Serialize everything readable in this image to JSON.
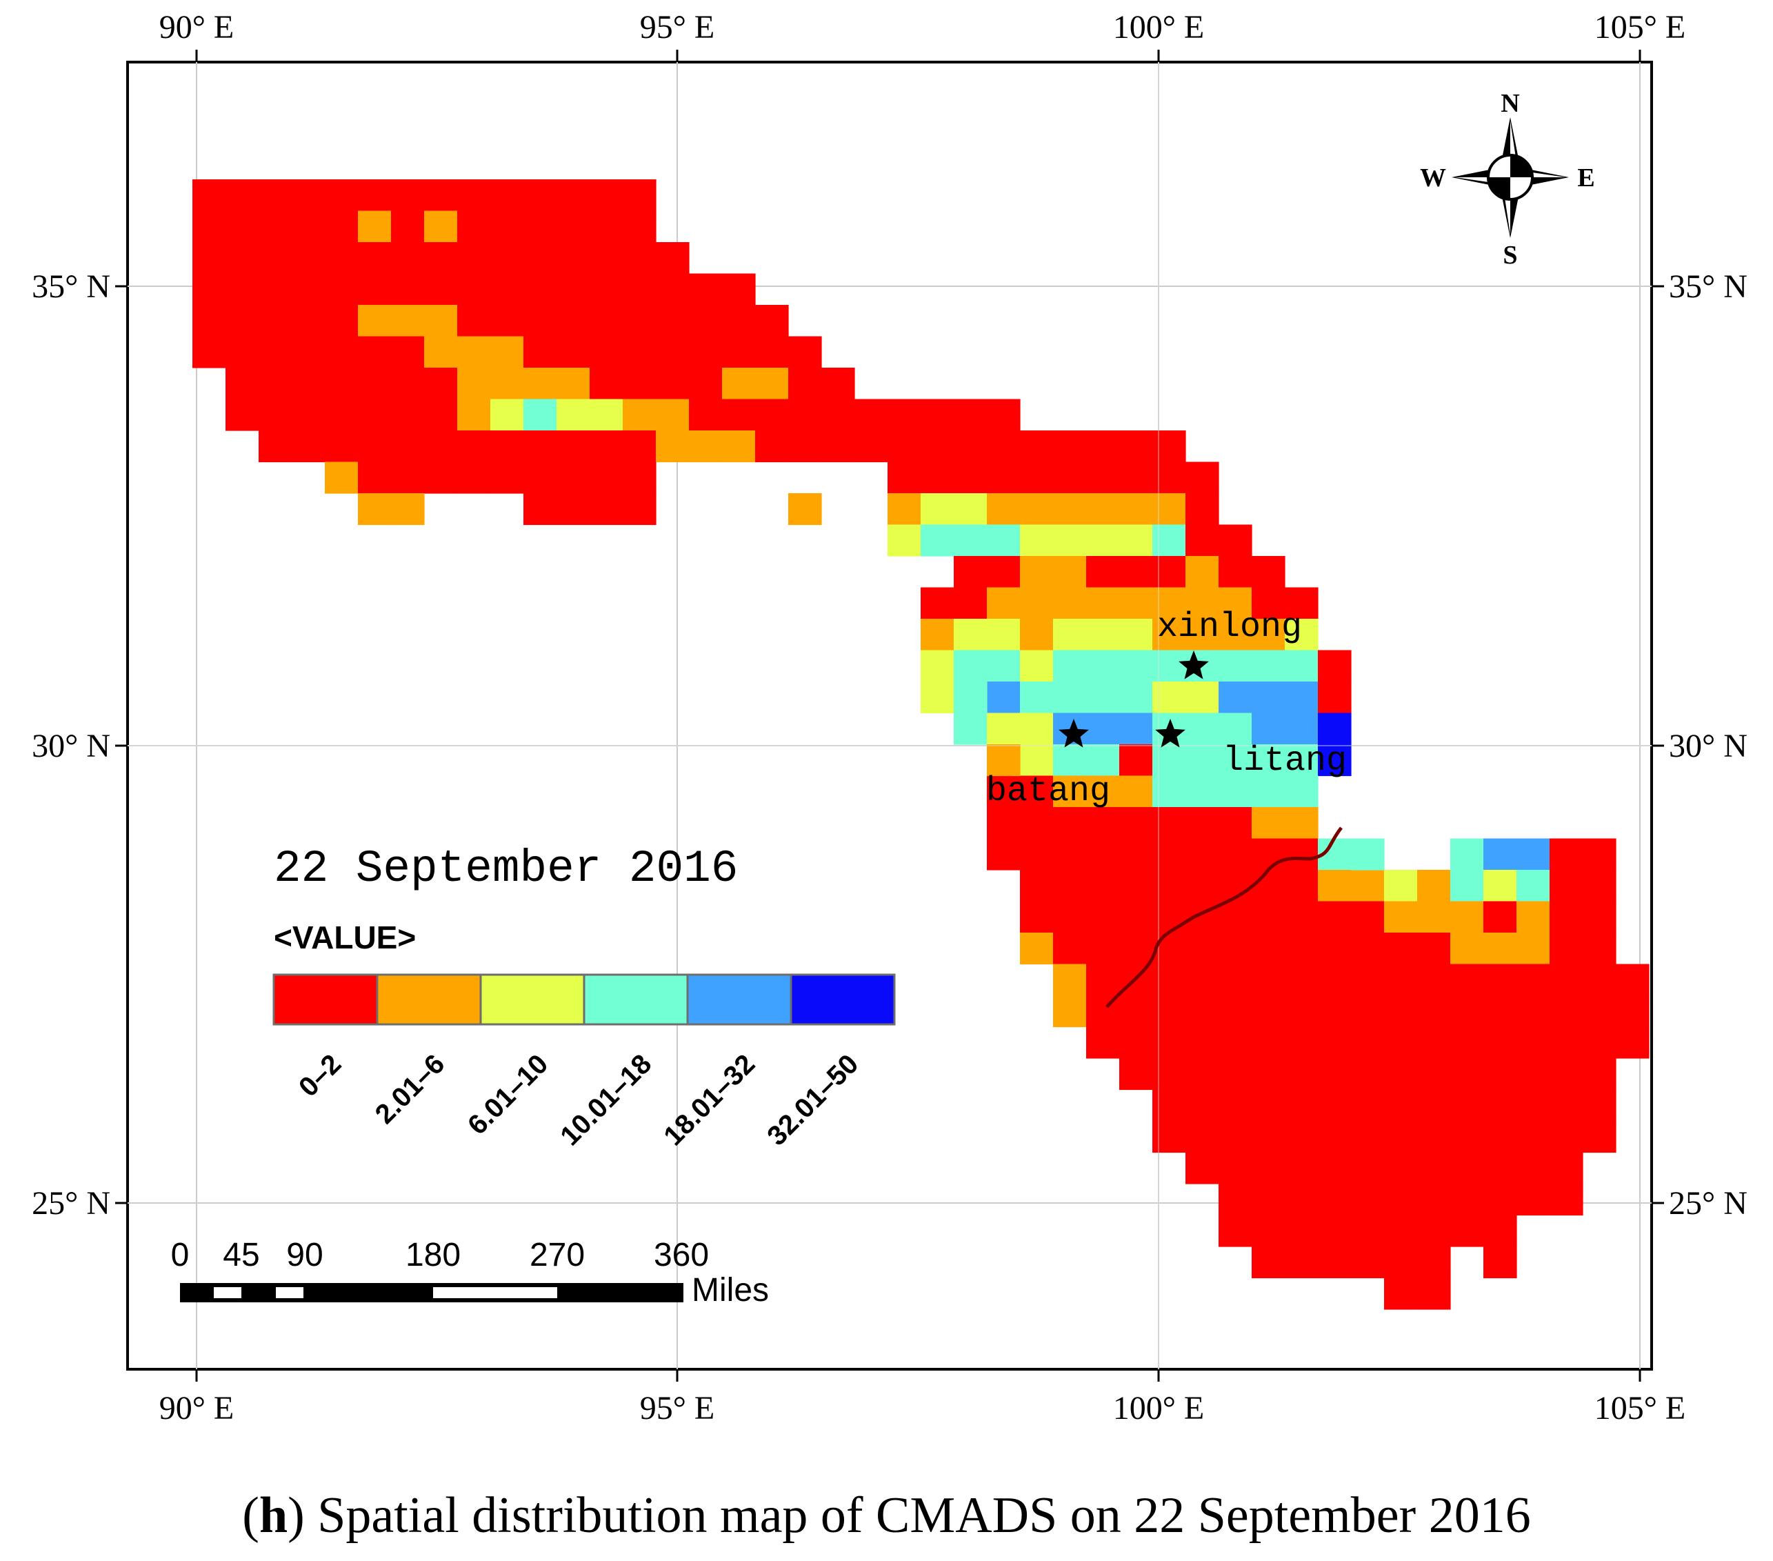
{
  "figure": {
    "panel_letter": "h",
    "caption_text": "Spatial distribution map of CMADS on 22 September 2016",
    "date_title": "22 September 2016"
  },
  "axes": {
    "top_labels": [
      "90° E",
      "95° E",
      "100° E",
      "105° E"
    ],
    "bottom_labels": [
      "90° E",
      "95° E",
      "100° E",
      "105° E"
    ],
    "left_labels": [
      "35° N",
      "30° N",
      "25° N"
    ],
    "right_labels": [
      "35° N",
      "30° N",
      "25° N"
    ]
  },
  "compass": {
    "n": "N",
    "s": "S",
    "e": "E",
    "w": "W"
  },
  "legend": {
    "heading": "<VALUE>",
    "classes": [
      {
        "label": "0–2",
        "color": "#ff0000"
      },
      {
        "label": "2.01–6",
        "color": "#ffa500"
      },
      {
        "label": "6.01–10",
        "color": "#e5ff4a"
      },
      {
        "label": "10.01–18",
        "color": "#72ffd4"
      },
      {
        "label": "18.01–32",
        "color": "#3fa2ff"
      },
      {
        "label": "32.01–50",
        "color": "#0a0afa"
      }
    ]
  },
  "scale_bar": {
    "tick_labels": [
      "0",
      "45",
      "90",
      "180",
      "270",
      "360"
    ],
    "unit": "Miles"
  },
  "stations": [
    {
      "name": "xinlong"
    },
    {
      "name": "batang"
    },
    {
      "name": "litang"
    }
  ],
  "grid": {
    "row_ranges": [
      [
        [
          0,
          13
        ]
      ],
      [
        [
          0,
          13
        ]
      ],
      [
        [
          0,
          14
        ]
      ],
      [
        [
          0,
          16
        ]
      ],
      [
        [
          0,
          17
        ]
      ],
      [
        [
          0,
          18
        ]
      ],
      [
        [
          1,
          19
        ]
      ],
      [
        [
          1,
          24
        ]
      ],
      [
        [
          2,
          29
        ]
      ],
      [
        [
          4,
          13
        ],
        [
          21,
          30
        ]
      ],
      [
        [
          10,
          13
        ],
        [
          21,
          30
        ]
      ],
      [
        [
          21,
          31
        ]
      ],
      [
        [
          23,
          32
        ]
      ],
      [
        [
          22,
          33
        ]
      ],
      [
        [
          22,
          33
        ]
      ],
      [
        [
          24,
          34
        ]
      ],
      [
        [
          24,
          34
        ]
      ],
      [
        [
          25,
          34
        ]
      ],
      [
        [
          25,
          34
        ]
      ],
      [
        [
          24,
          33
        ]
      ],
      [
        [
          24,
          33
        ]
      ],
      [
        [
          24,
          34
        ],
        [
          38,
          42
        ]
      ],
      [
        [
          25,
          42
        ]
      ],
      [
        [
          25,
          42
        ]
      ],
      [
        [
          25,
          42
        ]
      ],
      [
        [
          26,
          43
        ]
      ],
      [
        [
          26,
          43
        ]
      ],
      [
        [
          27,
          43
        ]
      ],
      [
        [
          28,
          42
        ]
      ],
      [
        [
          29,
          42
        ]
      ],
      [
        [
          29,
          42
        ]
      ],
      [
        [
          30,
          41
        ]
      ],
      [
        [
          31,
          41
        ]
      ],
      [
        [
          31,
          39
        ]
      ],
      [
        [
          32,
          37
        ],
        [
          39,
          39
        ]
      ],
      [
        [
          36,
          37
        ]
      ]
    ],
    "overrides": [
      [
        1,
        5,
        1
      ],
      [
        1,
        7,
        1
      ],
      [
        4,
        5,
        1
      ],
      [
        4,
        6,
        1
      ],
      [
        4,
        7,
        1
      ],
      [
        5,
        7,
        1
      ],
      [
        5,
        8,
        1
      ],
      [
        5,
        9,
        1
      ],
      [
        6,
        8,
        1
      ],
      [
        6,
        9,
        1
      ],
      [
        6,
        10,
        1
      ],
      [
        6,
        11,
        1
      ],
      [
        6,
        16,
        1
      ],
      [
        6,
        17,
        1
      ],
      [
        7,
        8,
        1
      ],
      [
        7,
        9,
        2
      ],
      [
        7,
        10,
        3
      ],
      [
        7,
        11,
        2
      ],
      [
        7,
        12,
        2
      ],
      [
        7,
        13,
        1
      ],
      [
        7,
        14,
        1
      ],
      [
        8,
        14,
        1
      ],
      [
        8,
        15,
        1
      ],
      [
        8,
        16,
        1
      ],
      [
        9,
        4,
        1
      ],
      [
        10,
        5,
        1
      ],
      [
        10,
        6,
        1
      ],
      [
        10,
        18,
        1
      ],
      [
        10,
        21,
        1
      ],
      [
        10,
        22,
        2
      ],
      [
        10,
        23,
        2
      ],
      [
        10,
        24,
        1
      ],
      [
        10,
        25,
        1
      ],
      [
        10,
        26,
        1
      ],
      [
        10,
        27,
        1
      ],
      [
        10,
        28,
        1
      ],
      [
        10,
        29,
        1
      ],
      [
        11,
        21,
        2
      ],
      [
        11,
        22,
        3
      ],
      [
        11,
        23,
        3
      ],
      [
        11,
        24,
        3
      ],
      [
        11,
        25,
        2
      ],
      [
        11,
        26,
        2
      ],
      [
        11,
        27,
        2
      ],
      [
        11,
        28,
        2
      ],
      [
        11,
        29,
        3
      ],
      [
        12,
        25,
        1
      ],
      [
        12,
        26,
        1
      ],
      [
        12,
        30,
        1
      ],
      [
        13,
        24,
        1
      ],
      [
        13,
        25,
        1
      ],
      [
        13,
        26,
        1
      ],
      [
        13,
        27,
        1
      ],
      [
        13,
        28,
        1
      ],
      [
        13,
        29,
        1
      ],
      [
        13,
        30,
        1
      ],
      [
        13,
        31,
        1
      ],
      [
        14,
        22,
        1
      ],
      [
        14,
        23,
        2
      ],
      [
        14,
        24,
        2
      ],
      [
        14,
        25,
        1
      ],
      [
        14,
        26,
        2
      ],
      [
        14,
        27,
        2
      ],
      [
        14,
        28,
        2
      ],
      [
        14,
        29,
        1
      ],
      [
        14,
        30,
        1
      ],
      [
        14,
        31,
        1
      ],
      [
        14,
        32,
        1
      ],
      [
        14,
        33,
        2
      ],
      [
        15,
        22,
        2
      ],
      [
        15,
        23,
        3
      ],
      [
        15,
        24,
        3
      ],
      [
        15,
        25,
        2
      ],
      [
        15,
        26,
        3
      ],
      [
        15,
        27,
        3
      ],
      [
        15,
        28,
        3
      ],
      [
        15,
        29,
        3
      ],
      [
        15,
        30,
        3
      ],
      [
        15,
        31,
        3
      ],
      [
        15,
        32,
        3
      ],
      [
        15,
        33,
        3
      ],
      [
        16,
        22,
        2
      ],
      [
        16,
        23,
        3
      ],
      [
        16,
        24,
        4
      ],
      [
        16,
        25,
        3
      ],
      [
        16,
        26,
        3
      ],
      [
        16,
        27,
        3
      ],
      [
        16,
        28,
        3
      ],
      [
        16,
        29,
        2
      ],
      [
        16,
        30,
        2
      ],
      [
        16,
        31,
        4
      ],
      [
        16,
        32,
        4
      ],
      [
        16,
        33,
        4
      ],
      [
        17,
        23,
        3
      ],
      [
        17,
        24,
        2
      ],
      [
        17,
        25,
        2
      ],
      [
        17,
        26,
        4
      ],
      [
        17,
        27,
        4
      ],
      [
        17,
        28,
        4
      ],
      [
        17,
        29,
        3
      ],
      [
        17,
        30,
        3
      ],
      [
        17,
        31,
        3
      ],
      [
        17,
        32,
        4
      ],
      [
        17,
        33,
        4
      ],
      [
        17,
        34,
        5
      ],
      [
        18,
        24,
        1
      ],
      [
        18,
        25,
        2
      ],
      [
        18,
        26,
        3
      ],
      [
        18,
        27,
        3
      ],
      [
        18,
        29,
        3
      ],
      [
        18,
        30,
        3
      ],
      [
        18,
        31,
        3
      ],
      [
        18,
        32,
        3
      ],
      [
        18,
        33,
        3
      ],
      [
        18,
        34,
        5
      ],
      [
        19,
        26,
        1
      ],
      [
        19,
        27,
        1
      ],
      [
        19,
        28,
        1
      ],
      [
        19,
        29,
        3
      ],
      [
        19,
        30,
        3
      ],
      [
        19,
        31,
        3
      ],
      [
        19,
        32,
        3
      ],
      [
        19,
        33,
        3
      ],
      [
        20,
        32,
        1
      ],
      [
        20,
        33,
        1
      ],
      [
        21,
        34,
        3
      ],
      [
        21,
        35,
        3
      ],
      [
        21,
        38,
        3
      ],
      [
        21,
        39,
        4
      ],
      [
        21,
        40,
        4
      ],
      [
        22,
        34,
        1
      ],
      [
        22,
        35,
        1
      ],
      [
        22,
        36,
        2
      ],
      [
        22,
        37,
        1
      ],
      [
        22,
        38,
        3
      ],
      [
        22,
        39,
        2
      ],
      [
        22,
        40,
        3
      ],
      [
        23,
        36,
        1
      ],
      [
        23,
        37,
        1
      ],
      [
        23,
        38,
        1
      ],
      [
        23,
        40,
        1
      ],
      [
        24,
        25,
        1
      ],
      [
        24,
        38,
        1
      ],
      [
        24,
        39,
        1
      ],
      [
        24,
        40,
        1
      ],
      [
        25,
        26,
        1
      ],
      [
        26,
        26,
        1
      ]
    ]
  }
}
